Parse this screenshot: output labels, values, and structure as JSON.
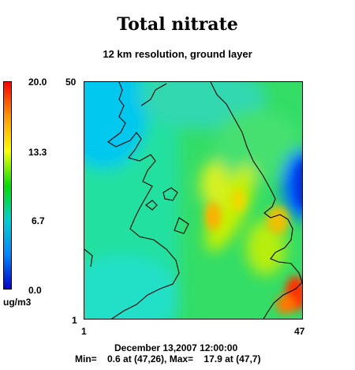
{
  "title": "Total nitrate",
  "subtitle": "12 km resolution, ground layer",
  "colorbar": {
    "max_label": "20.0",
    "mid_high_label": "13.3",
    "mid_low_label": "6.7",
    "min_label": "0.0",
    "units": "ug/m3",
    "colors": [
      "#ff0000",
      "#ff9900",
      "#ffff00",
      "#00e000",
      "#00d0d0",
      "#0088ff",
      "#0000cc"
    ]
  },
  "axes": {
    "y_top": "50",
    "y_bottom": "1",
    "x_left": "1",
    "x_right": "47"
  },
  "footer": {
    "timestamp": "December 13,2007 12:00:00",
    "stats": "Min=    0.6 at (47,26), Max=    17.9 at (47,7)"
  }
}
